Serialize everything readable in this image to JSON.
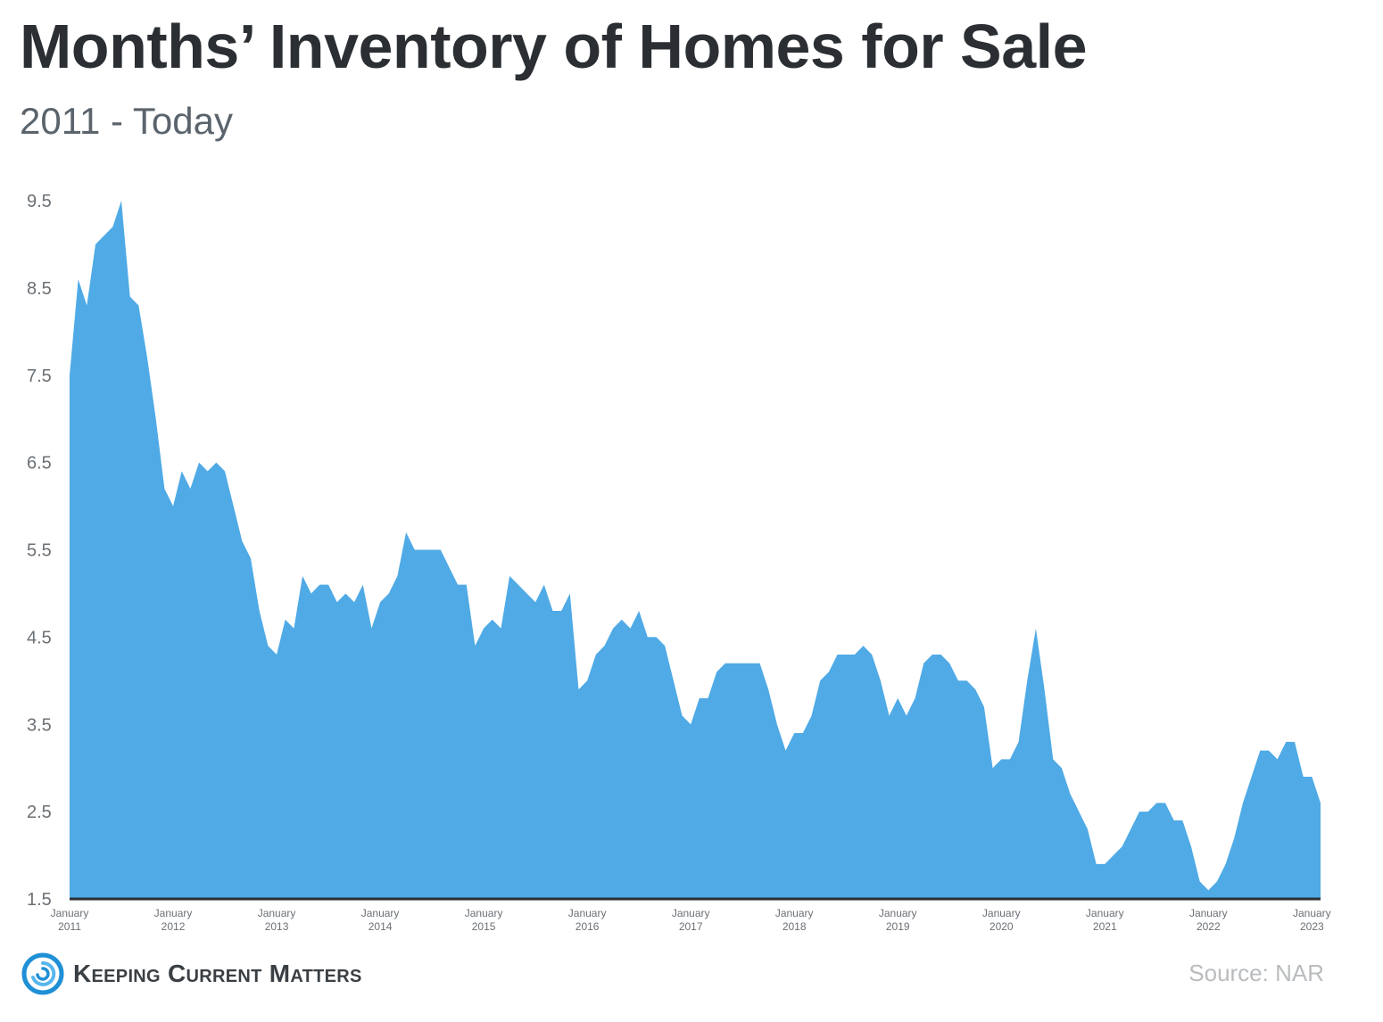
{
  "header": {
    "title": "Months’ Inventory of Homes for Sale",
    "subtitle": "2011 - Today"
  },
  "footer": {
    "brand": "Keeping Current Matters",
    "source": "Source: NAR",
    "logo_icon": "swirl-logo-icon"
  },
  "colors": {
    "area_fill": "#4faae6",
    "baseline": "#2b2f33",
    "title": "#2b2f33",
    "subtitle": "#5b646c",
    "axis_text": "#6b7075",
    "source_text": "#b9bcbf",
    "logo_blue": "#1f8fd6"
  },
  "chart_data": {
    "type": "area",
    "title": "Months’ Inventory of Homes for Sale",
    "subtitle": "2011 - Today",
    "xlabel": "",
    "ylabel": "",
    "ylim": [
      1.5,
      9.5
    ],
    "y_ticks": [
      "9.5",
      "8.5",
      "7.5",
      "6.5",
      "5.5",
      "4.5",
      "3.5",
      "2.5",
      "1.5"
    ],
    "x_ticks": [
      {
        "month": "January",
        "year": "2011"
      },
      {
        "month": "January",
        "year": "2012"
      },
      {
        "month": "January",
        "year": "2013"
      },
      {
        "month": "January",
        "year": "2014"
      },
      {
        "month": "January",
        "year": "2015"
      },
      {
        "month": "January",
        "year": "2016"
      },
      {
        "month": "January",
        "year": "2017"
      },
      {
        "month": "January",
        "year": "2018"
      },
      {
        "month": "January",
        "year": "2019"
      },
      {
        "month": "January",
        "year": "2020"
      },
      {
        "month": "January",
        "year": "2021"
      },
      {
        "month": "January",
        "year": "2022"
      },
      {
        "month": "January",
        "year": "2023"
      }
    ],
    "grid": false,
    "legend": "none",
    "x_start": "2011-01",
    "x_end": "2023-02",
    "series": [
      {
        "values": [
          7.5,
          8.6,
          8.3,
          9.0,
          9.1,
          9.2,
          9.5,
          8.4,
          8.3,
          7.7,
          7.0,
          6.2,
          6.0,
          6.4,
          6.2,
          6.5,
          6.4,
          6.5,
          6.4,
          6.0,
          5.6,
          5.4,
          4.8,
          4.4,
          4.3,
          4.7,
          4.6,
          5.2,
          5.0,
          5.1,
          5.1,
          4.9,
          5.0,
          4.9,
          5.1,
          4.6,
          4.9,
          5.0,
          5.2,
          5.7,
          5.5,
          5.5,
          5.5,
          5.5,
          5.3,
          5.1,
          5.1,
          4.4,
          4.6,
          4.7,
          4.6,
          5.2,
          5.1,
          5.0,
          4.9,
          5.1,
          4.8,
          4.8,
          5.0,
          3.9,
          4.0,
          4.3,
          4.4,
          4.6,
          4.7,
          4.6,
          4.8,
          4.5,
          4.5,
          4.4,
          4.0,
          3.6,
          3.5,
          3.8,
          3.8,
          4.1,
          4.2,
          4.2,
          4.2,
          4.2,
          4.2,
          3.9,
          3.5,
          3.2,
          3.4,
          3.4,
          3.6,
          4.0,
          4.1,
          4.3,
          4.3,
          4.3,
          4.4,
          4.3,
          4.0,
          3.6,
          3.8,
          3.6,
          3.8,
          4.2,
          4.3,
          4.3,
          4.2,
          4.0,
          4.0,
          3.9,
          3.7,
          3.0,
          3.1,
          3.1,
          3.3,
          4.0,
          4.6,
          3.9,
          3.1,
          3.0,
          2.7,
          2.5,
          2.3,
          1.9,
          1.9,
          2.0,
          2.1,
          2.3,
          2.5,
          2.5,
          2.6,
          2.6,
          2.4,
          2.4,
          2.1,
          1.7,
          1.6,
          1.7,
          1.9,
          2.2,
          2.6,
          2.9,
          3.2,
          3.2,
          3.1,
          3.3,
          3.3,
          2.9,
          2.9,
          2.6
        ]
      }
    ]
  }
}
